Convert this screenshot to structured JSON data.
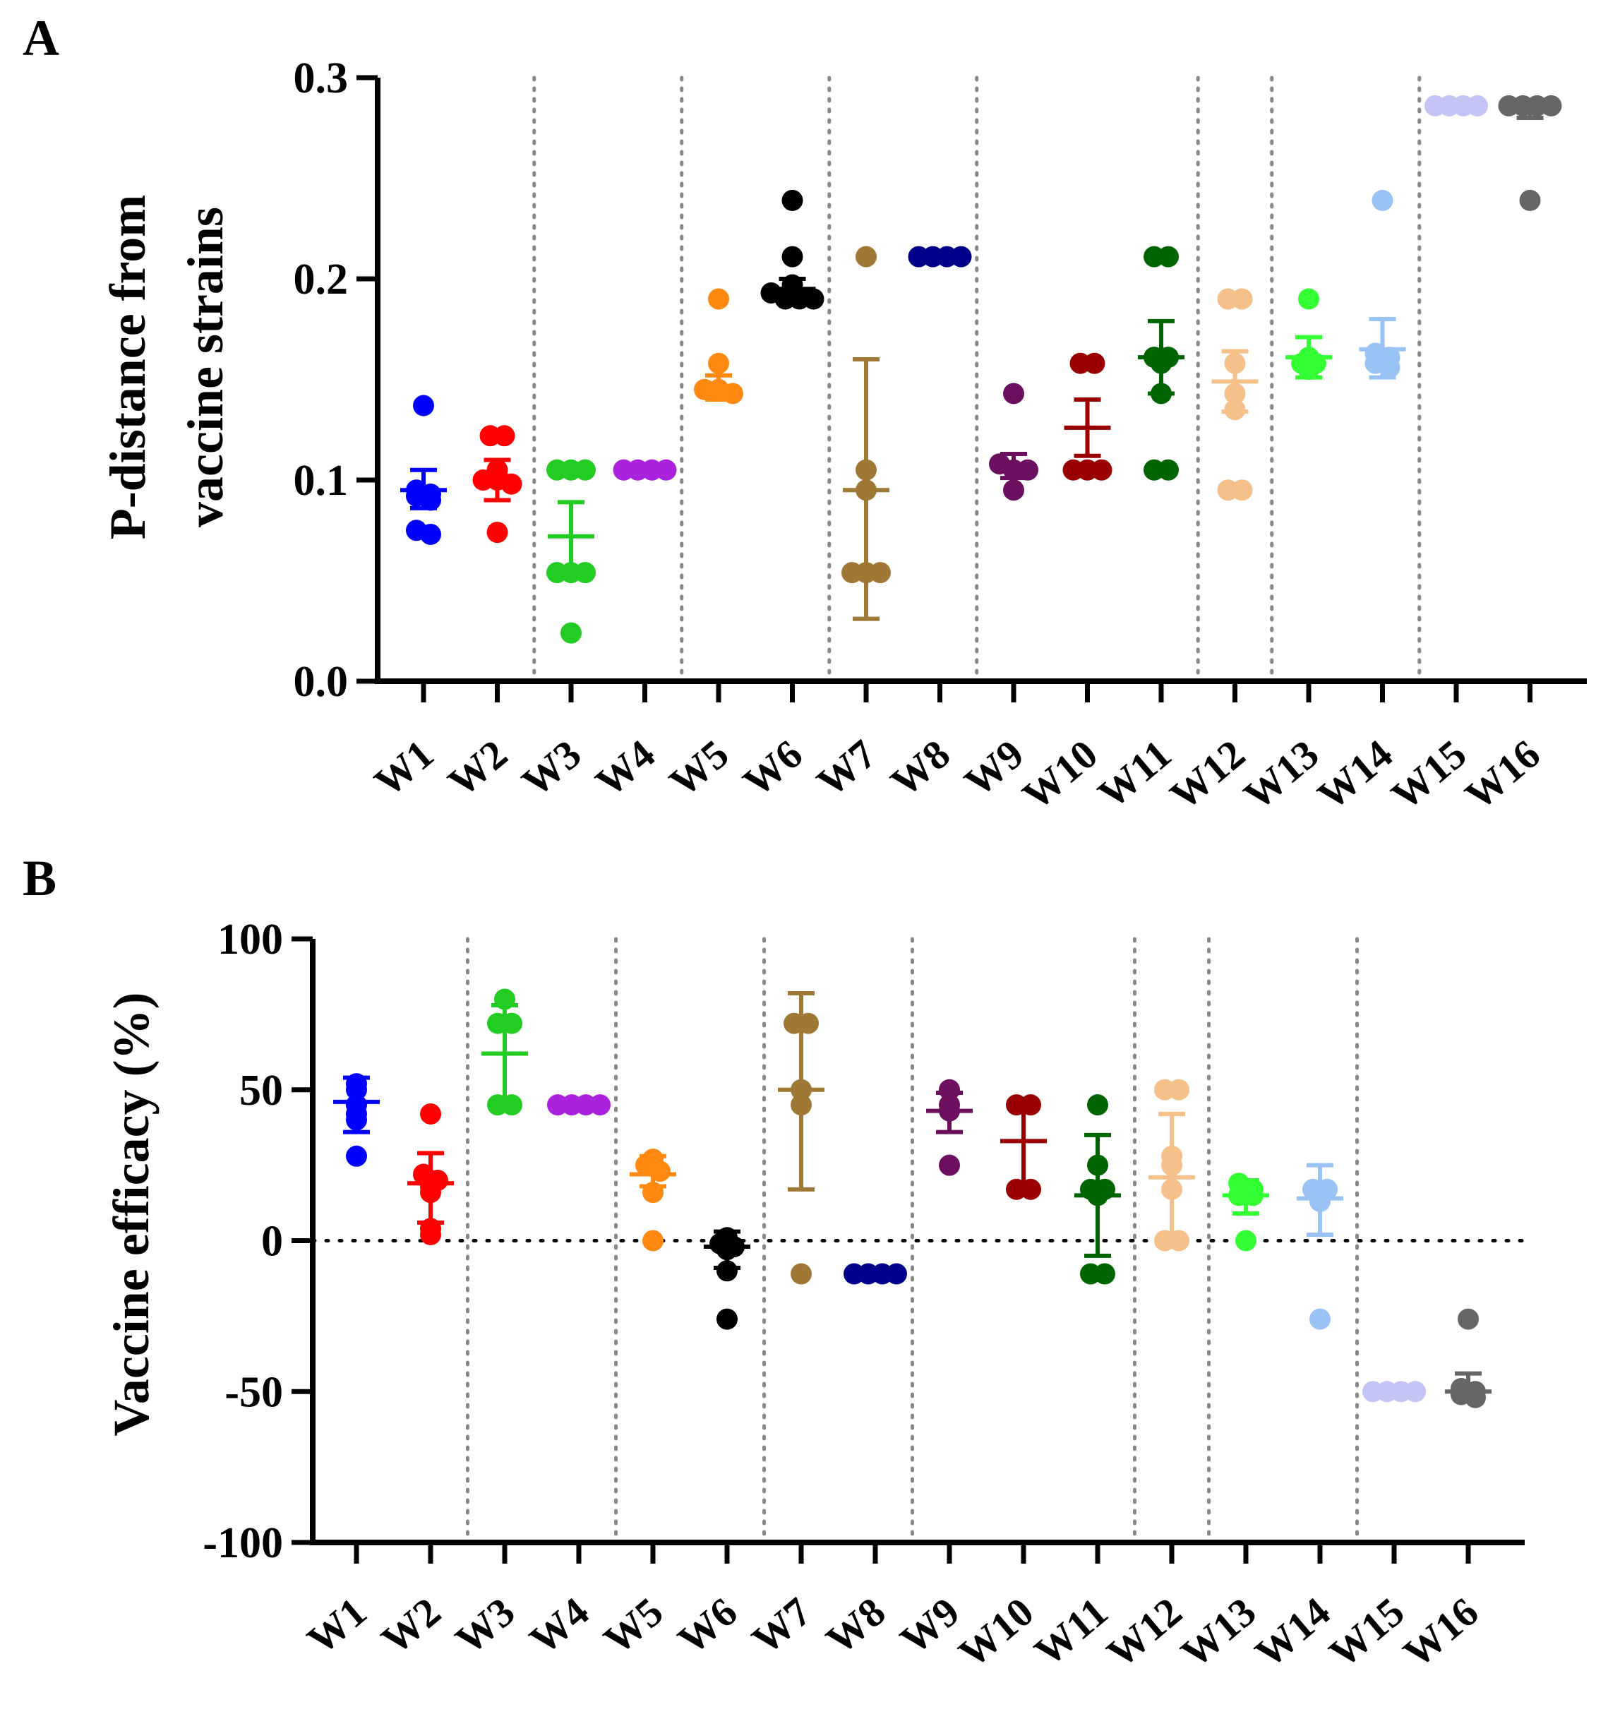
{
  "figure": {
    "panel_a_letter": "A",
    "panel_b_letter": "B"
  },
  "chart_data": [
    {
      "type": "scatter",
      "panel": "A",
      "title": "",
      "xlabel": "",
      "ylabel": "P-distance from vaccine strains",
      "ylabel_lines": [
        "P-distance from",
        "vaccine strains"
      ],
      "ylim": [
        0,
        0.3
      ],
      "yticks": [
        0.0,
        0.1,
        0.2,
        0.3
      ],
      "ytick_labels": [
        "0.0",
        "0.1",
        "0.2",
        "0.3"
      ],
      "categories": [
        "W1",
        "W2",
        "W3",
        "W4",
        "W5",
        "W6",
        "W7",
        "W8",
        "W9",
        "W10",
        "W11",
        "W12",
        "W13",
        "W14",
        "W15",
        "W16"
      ],
      "group_separators_after": [
        2,
        4,
        6,
        8,
        11,
        12,
        14
      ],
      "reference_line": null,
      "series": [
        {
          "name": "W1",
          "color": "#0000ff",
          "points": [
            0.137,
            0.095,
            0.093,
            0.092,
            0.09,
            0.075,
            0.073
          ],
          "mean": 0.095,
          "sd_low": 0.086,
          "sd_high": 0.105
        },
        {
          "name": "W2",
          "color": "#ff0000",
          "points": [
            0.122,
            0.122,
            0.105,
            0.102,
            0.1,
            0.1,
            0.098,
            0.074
          ],
          "mean": 0.1,
          "sd_low": 0.09,
          "sd_high": 0.11
        },
        {
          "name": "W3",
          "color": "#22cc22",
          "points": [
            0.105,
            0.105,
            0.105,
            0.054,
            0.054,
            0.054,
            0.024
          ],
          "mean": 0.072,
          "sd_low": 0.055,
          "sd_high": 0.089
        },
        {
          "name": "W4",
          "color": "#aa22dd",
          "points": [
            0.105,
            0.105,
            0.105,
            0.105
          ],
          "mean": 0.105,
          "sd_low": 0.105,
          "sd_high": 0.105
        },
        {
          "name": "W5",
          "color": "#ff8811",
          "points": [
            0.19,
            0.158,
            0.145,
            0.145,
            0.143
          ],
          "mean": 0.145,
          "sd_low": 0.14,
          "sd_high": 0.152
        },
        {
          "name": "W6",
          "color": "#000000",
          "points": [
            0.239,
            0.211,
            0.197,
            0.193,
            0.19,
            0.19,
            0.19
          ],
          "mean": 0.195,
          "sd_low": 0.191,
          "sd_high": 0.2
        },
        {
          "name": "W7",
          "color": "#a07836",
          "points": [
            0.211,
            0.105,
            0.095,
            0.054,
            0.054,
            0.054
          ],
          "mean": 0.095,
          "sd_low": 0.031,
          "sd_high": 0.16
        },
        {
          "name": "W8",
          "color": "#00008b",
          "points": [
            0.211,
            0.211,
            0.211,
            0.211
          ],
          "mean": 0.211,
          "sd_low": 0.211,
          "sd_high": 0.211
        },
        {
          "name": "W9",
          "color": "#6b0f5e",
          "points": [
            0.143,
            0.108,
            0.105,
            0.105,
            0.095
          ],
          "mean": 0.107,
          "sd_low": 0.101,
          "sd_high": 0.113
        },
        {
          "name": "W10",
          "color": "#9b0000",
          "points": [
            0.158,
            0.158,
            0.105,
            0.105,
            0.105
          ],
          "mean": 0.126,
          "sd_low": 0.112,
          "sd_high": 0.14
        },
        {
          "name": "W11",
          "color": "#006400",
          "points": [
            0.211,
            0.211,
            0.161,
            0.161,
            0.158,
            0.143,
            0.105,
            0.105
          ],
          "mean": 0.161,
          "sd_low": 0.143,
          "sd_high": 0.179
        },
        {
          "name": "W12",
          "color": "#f5c08a",
          "points": [
            0.19,
            0.19,
            0.158,
            0.143,
            0.135,
            0.095,
            0.095
          ],
          "mean": 0.149,
          "sd_low": 0.134,
          "sd_high": 0.164
        },
        {
          "name": "W13",
          "color": "#33ff33",
          "points": [
            0.19,
            0.161,
            0.158,
            0.158,
            0.155
          ],
          "mean": 0.161,
          "sd_low": 0.151,
          "sd_high": 0.171
        },
        {
          "name": "W14",
          "color": "#99c2f5",
          "points": [
            0.239,
            0.163,
            0.161,
            0.158,
            0.156
          ],
          "mean": 0.165,
          "sd_low": 0.151,
          "sd_high": 0.18
        },
        {
          "name": "W15",
          "color": "#c4c4f5",
          "points": [
            0.286,
            0.286,
            0.286,
            0.286
          ],
          "mean": 0.286,
          "sd_low": 0.286,
          "sd_high": 0.286
        },
        {
          "name": "W16",
          "color": "#666666",
          "points": [
            0.286,
            0.286,
            0.286,
            0.286,
            0.239
          ],
          "mean": 0.284,
          "sd_low": 0.28,
          "sd_high": 0.287
        }
      ]
    },
    {
      "type": "scatter",
      "panel": "B",
      "title": "",
      "xlabel": "",
      "ylabel": "Vaccine efficacy (%)",
      "ylabel_lines": [
        "Vaccine efficacy (%)"
      ],
      "ylim": [
        -100,
        100
      ],
      "yticks": [
        -100,
        -50,
        0,
        50,
        100
      ],
      "ytick_labels": [
        "-100",
        "-50",
        "0",
        "50",
        "100"
      ],
      "categories": [
        "W1",
        "W2",
        "W3",
        "W4",
        "W5",
        "W6",
        "W7",
        "W8",
        "W9",
        "W10",
        "W11",
        "W12",
        "W13",
        "W14",
        "W15",
        "W16"
      ],
      "group_separators_after": [
        2,
        4,
        6,
        8,
        11,
        12,
        14
      ],
      "reference_line": 0,
      "series": [
        {
          "name": "W1",
          "color": "#0000ff",
          "points": [
            52,
            50,
            45,
            42,
            40,
            28
          ],
          "mean": 46,
          "sd_low": 36,
          "sd_high": 54
        },
        {
          "name": "W2",
          "color": "#ff0000",
          "points": [
            42,
            22,
            20,
            18,
            16,
            4,
            2
          ],
          "mean": 19,
          "sd_low": 6,
          "sd_high": 29
        },
        {
          "name": "W3",
          "color": "#22cc22",
          "points": [
            80,
            72,
            72,
            45,
            45
          ],
          "mean": 62,
          "sd_low": 45,
          "sd_high": 78
        },
        {
          "name": "W4",
          "color": "#aa22dd",
          "points": [
            45,
            45,
            45,
            45
          ],
          "mean": 45,
          "sd_low": 45,
          "sd_high": 45
        },
        {
          "name": "W5",
          "color": "#ff8811",
          "points": [
            27,
            25,
            23,
            16,
            0
          ],
          "mean": 22,
          "sd_low": 18,
          "sd_high": 28
        },
        {
          "name": "W6",
          "color": "#000000",
          "points": [
            1,
            -1,
            -2,
            -3,
            -10,
            -26
          ],
          "mean": -2,
          "sd_low": -9,
          "sd_high": 3
        },
        {
          "name": "W7",
          "color": "#a07836",
          "points": [
            72,
            72,
            50,
            45,
            -11
          ],
          "mean": 50,
          "sd_low": 17,
          "sd_high": 82
        },
        {
          "name": "W8",
          "color": "#00008b",
          "points": [
            -11,
            -11,
            -11,
            -11
          ],
          "mean": -11,
          "sd_low": -11,
          "sd_high": -11
        },
        {
          "name": "W9",
          "color": "#6b0f5e",
          "points": [
            50,
            45,
            43,
            25
          ],
          "mean": 43,
          "sd_low": 36,
          "sd_high": 49
        },
        {
          "name": "W10",
          "color": "#9b0000",
          "points": [
            45,
            45,
            17,
            17
          ],
          "mean": 33,
          "sd_low": 17,
          "sd_high": 45
        },
        {
          "name": "W11",
          "color": "#006400",
          "points": [
            45,
            25,
            17,
            17,
            15,
            -11,
            -11
          ],
          "mean": 15,
          "sd_low": -5,
          "sd_high": 35
        },
        {
          "name": "W12",
          "color": "#f5c08a",
          "points": [
            50,
            50,
            28,
            25,
            17,
            0,
            0
          ],
          "mean": 21,
          "sd_low": 0,
          "sd_high": 42
        },
        {
          "name": "W13",
          "color": "#33ff33",
          "points": [
            19,
            17,
            15,
            15,
            0
          ],
          "mean": 15,
          "sd_low": 9,
          "sd_high": 20
        },
        {
          "name": "W14",
          "color": "#99c2f5",
          "points": [
            17,
            17,
            15,
            13,
            -26
          ],
          "mean": 14,
          "sd_low": 2,
          "sd_high": 25
        },
        {
          "name": "W15",
          "color": "#c4c4f5",
          "points": [
            -50,
            -50,
            -50,
            -50
          ],
          "mean": -50,
          "sd_low": -50,
          "sd_high": -50
        },
        {
          "name": "W16",
          "color": "#666666",
          "points": [
            -26,
            -49,
            -50,
            -51,
            -52
          ],
          "mean": -50,
          "sd_low": -53,
          "sd_high": -44
        }
      ]
    }
  ]
}
